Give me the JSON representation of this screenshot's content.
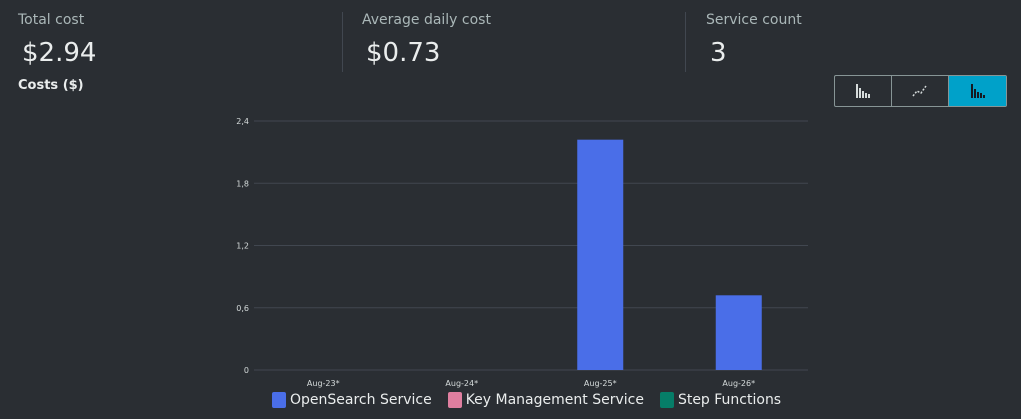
{
  "summary": {
    "total_cost": {
      "label": "Total cost",
      "value": "$2.94"
    },
    "average_daily_cost": {
      "label": "Average daily cost",
      "value": "$0.73"
    },
    "service_count": {
      "label": "Service count",
      "value": "3"
    }
  },
  "chart_title": "Costs ($)",
  "view_buttons": [
    {
      "icon": "bar-chart-icon",
      "active": false
    },
    {
      "icon": "line-chart-icon",
      "active": false
    },
    {
      "icon": "stacked-bar-chart-icon",
      "active": true
    }
  ],
  "colors": {
    "accent": "#00a1c9",
    "opensearch": "#4a6ee8",
    "kms": "#e07fa0",
    "step_functions": "#067d68"
  },
  "chart_data": {
    "type": "bar",
    "stacked": true,
    "title": "Costs ($)",
    "categories": [
      "Aug-23*",
      "Aug-24*",
      "Aug-25*",
      "Aug-26*"
    ],
    "series": [
      {
        "name": "OpenSearch Service",
        "color": "#4a6ee8",
        "values": [
          0,
          0,
          2.22,
          0.72
        ]
      },
      {
        "name": "Key Management Service",
        "color": "#e07fa0",
        "values": [
          0,
          0,
          0,
          0
        ]
      },
      {
        "name": "Step Functions",
        "color": "#067d68",
        "values": [
          0,
          0,
          0,
          0
        ]
      }
    ],
    "yticks": [
      "0",
      "0,6",
      "1,2",
      "1,8",
      "2,4"
    ],
    "ylim": [
      0,
      2.4
    ],
    "grid": true,
    "legend": "bottom"
  }
}
